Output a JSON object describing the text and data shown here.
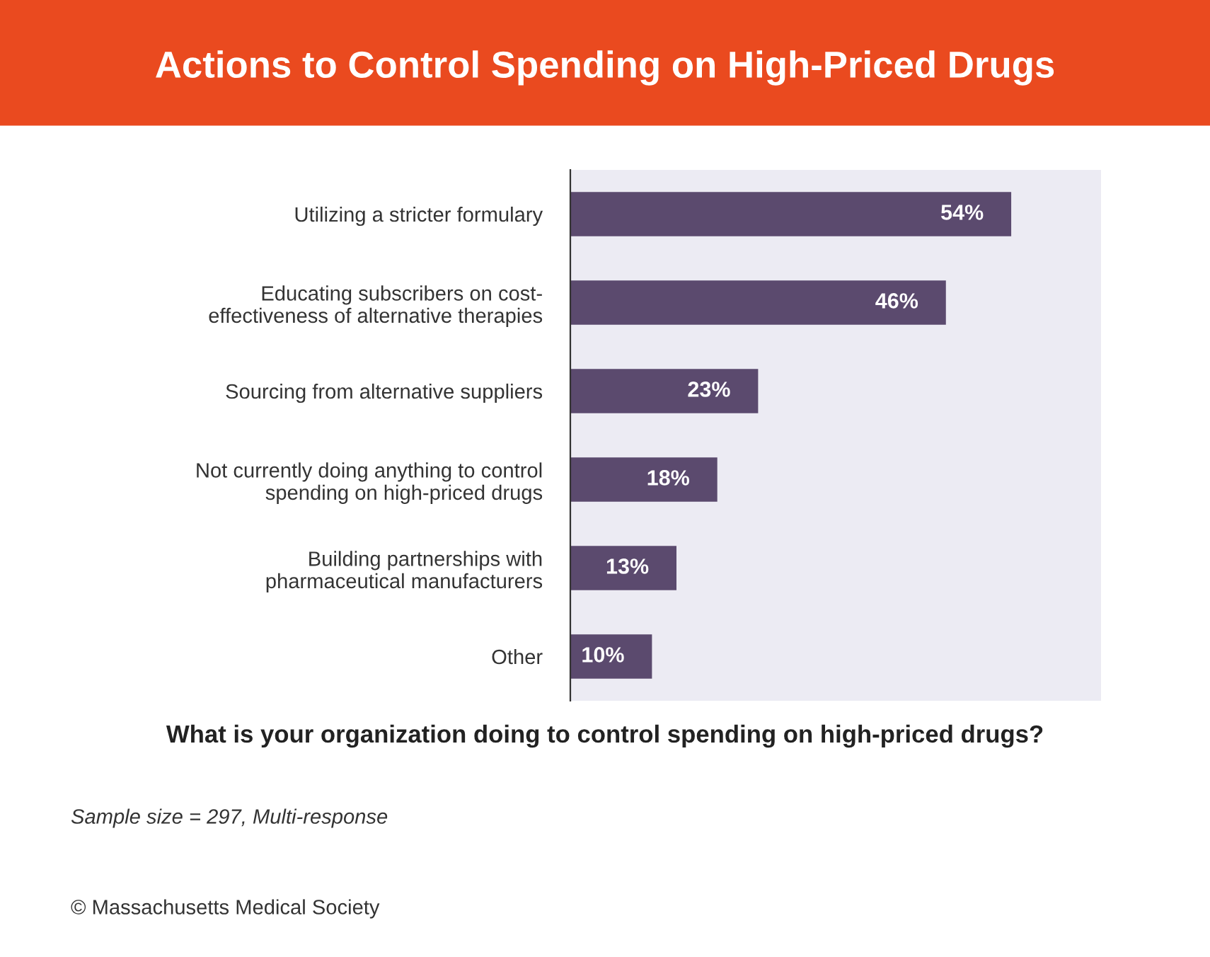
{
  "chart_data": {
    "type": "bar",
    "orientation": "horizontal",
    "title": "Actions to Control Spending on High-Priced Drugs",
    "xlabel": "What is your organization doing to control spending on high-priced drugs?",
    "categories": [
      "Utilizing a stricter formulary",
      "Educating subscribers on cost-\neffectiveness of alternative therapies",
      "Sourcing from alternative suppliers",
      "Not currently doing anything to control\nspending on high-priced drugs",
      "Building partnerships with\npharmaceutical manufacturers",
      "Other"
    ],
    "values": [
      54,
      46,
      23,
      18,
      13,
      10
    ],
    "value_labels": [
      "54%",
      "46%",
      "23%",
      "18%",
      "13%",
      "10%"
    ],
    "color": "#5b4a6e",
    "xlim": [
      0,
      65
    ],
    "tick_labels": "y",
    "grid": false,
    "legend": false,
    "annotations": [
      "Sample size = 297, Multi-response",
      "© Massachusetts Medical Society"
    ]
  }
}
